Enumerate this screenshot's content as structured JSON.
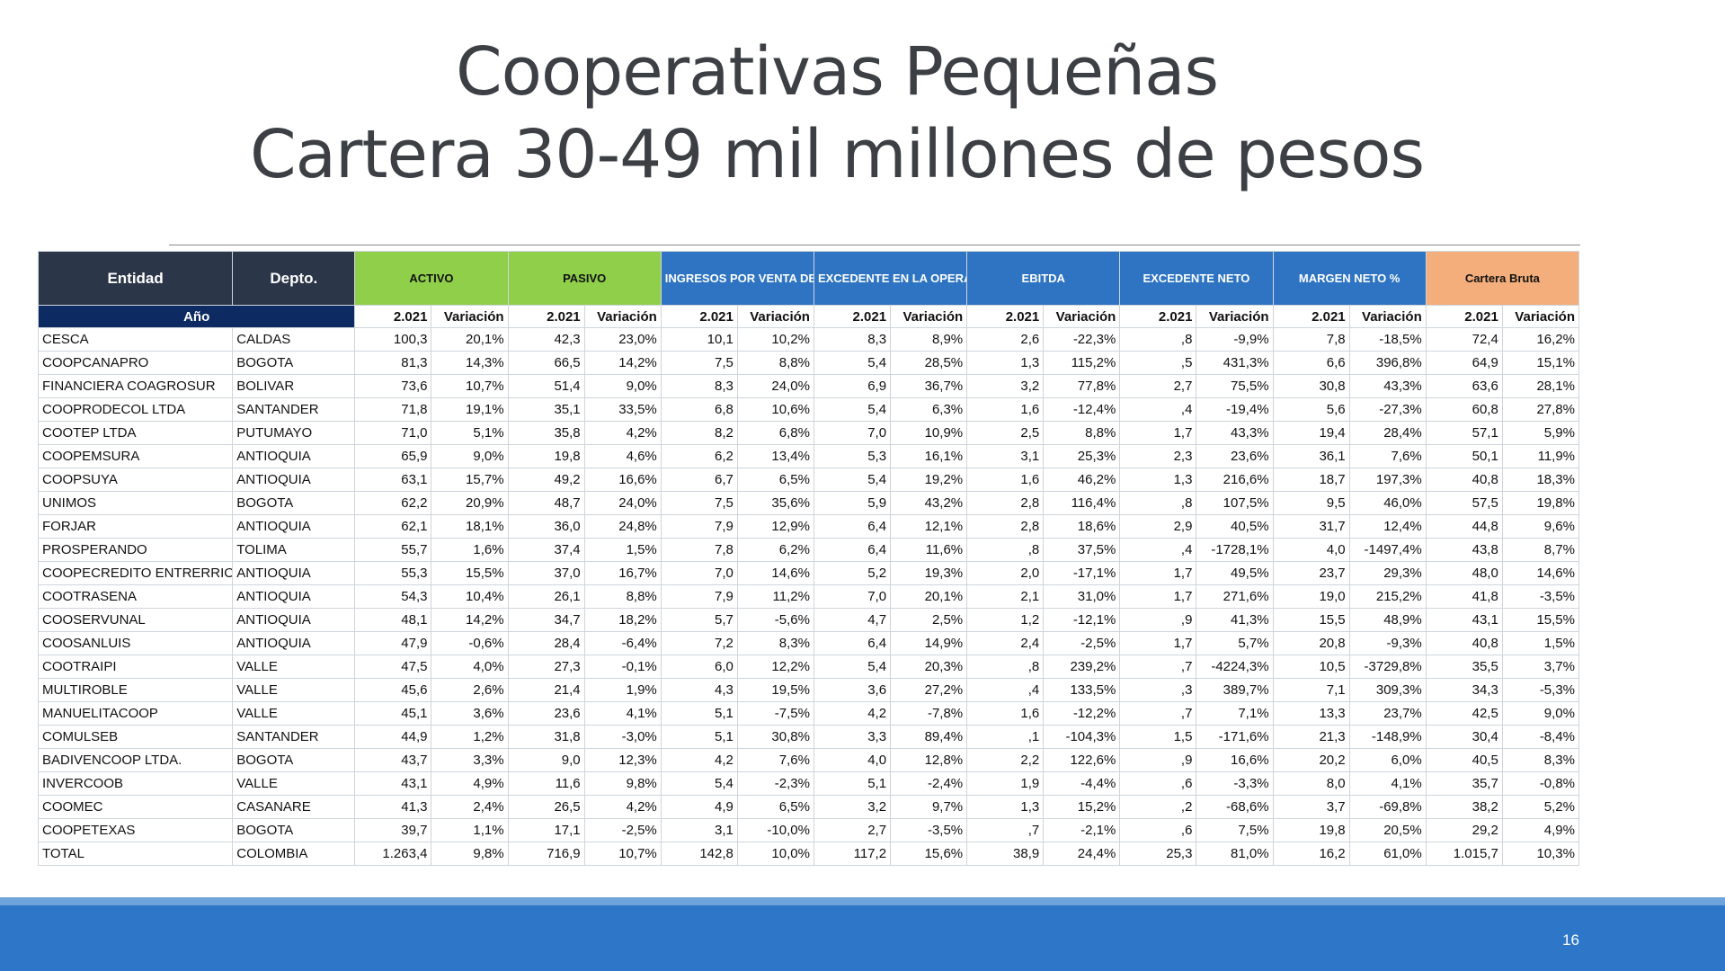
{
  "slide": {
    "title_line1": "Cooperativas Pequeñas",
    "title_line2": "Cartera 30-49 mil millones de pesos",
    "page_number": "16"
  },
  "table": {
    "headers": {
      "entidad": "Entidad",
      "depto": "Depto.",
      "anio": "Año",
      "groups": [
        {
          "label": "ACTIVO",
          "color": "#8fcf4a"
        },
        {
          "label": "PASIVO",
          "color": "#8fcf4a"
        },
        {
          "label": "INGRESOS POR VENTA DE BIENES Y SERVICIOS",
          "color": "#2e74c2"
        },
        {
          "label": "EXCEDENTE EN LA OPERACIÓN FINANCIERA",
          "color": "#2e74c2"
        },
        {
          "label": "EBITDA",
          "color": "#2e74c2"
        },
        {
          "label": "EXCEDENTE NETO",
          "color": "#2e74c2"
        },
        {
          "label": "MARGEN NETO %",
          "color": "#2e74c2"
        },
        {
          "label": "Cartera Bruta",
          "color": "#f4ae7b"
        }
      ],
      "sub_year": "2.021",
      "sub_var": "Variación"
    },
    "rows": [
      {
        "entidad": "CESCA",
        "depto": "CALDAS",
        "values": [
          "100,3",
          "20,1%",
          "42,3",
          "23,0%",
          "10,1",
          "10,2%",
          "8,3",
          "8,9%",
          "2,6",
          "-22,3%",
          ",8",
          "-9,9%",
          "7,8",
          "-18,5%",
          "72,4",
          "16,2%"
        ]
      },
      {
        "entidad": "COOPCANAPRO",
        "depto": "BOGOTA",
        "values": [
          "81,3",
          "14,3%",
          "66,5",
          "14,2%",
          "7,5",
          "8,8%",
          "5,4",
          "28,5%",
          "1,3",
          "115,2%",
          ",5",
          "431,3%",
          "6,6",
          "396,8%",
          "64,9",
          "15,1%"
        ]
      },
      {
        "entidad": "FINANCIERA COAGROSUR",
        "depto": "BOLIVAR",
        "values": [
          "73,6",
          "10,7%",
          "51,4",
          "9,0%",
          "8,3",
          "24,0%",
          "6,9",
          "36,7%",
          "3,2",
          "77,8%",
          "2,7",
          "75,5%",
          "30,8",
          "43,3%",
          "63,6",
          "28,1%"
        ]
      },
      {
        "entidad": "COOPRODECOL LTDA",
        "depto": "SANTANDER",
        "values": [
          "71,8",
          "19,1%",
          "35,1",
          "33,5%",
          "6,8",
          "10,6%",
          "5,4",
          "6,3%",
          "1,6",
          "-12,4%",
          ",4",
          "-19,4%",
          "5,6",
          "-27,3%",
          "60,8",
          "27,8%"
        ]
      },
      {
        "entidad": "COOTEP LTDA",
        "depto": "PUTUMAYO",
        "values": [
          "71,0",
          "5,1%",
          "35,8",
          "4,2%",
          "8,2",
          "6,8%",
          "7,0",
          "10,9%",
          "2,5",
          "8,8%",
          "1,7",
          "43,3%",
          "19,4",
          "28,4%",
          "57,1",
          "5,9%"
        ]
      },
      {
        "entidad": "COOPEMSURA",
        "depto": "ANTIOQUIA",
        "values": [
          "65,9",
          "9,0%",
          "19,8",
          "4,6%",
          "6,2",
          "13,4%",
          "5,3",
          "16,1%",
          "3,1",
          "25,3%",
          "2,3",
          "23,6%",
          "36,1",
          "7,6%",
          "50,1",
          "11,9%"
        ]
      },
      {
        "entidad": "COOPSUYA",
        "depto": "ANTIOQUIA",
        "values": [
          "63,1",
          "15,7%",
          "49,2",
          "16,6%",
          "6,7",
          "6,5%",
          "5,4",
          "19,2%",
          "1,6",
          "46,2%",
          "1,3",
          "216,6%",
          "18,7",
          "197,3%",
          "40,8",
          "18,3%"
        ]
      },
      {
        "entidad": "UNIMOS",
        "depto": "BOGOTA",
        "values": [
          "62,2",
          "20,9%",
          "48,7",
          "24,0%",
          "7,5",
          "35,6%",
          "5,9",
          "43,2%",
          "2,8",
          "116,4%",
          ",8",
          "107,5%",
          "9,5",
          "46,0%",
          "57,5",
          "19,8%"
        ]
      },
      {
        "entidad": "FORJAR",
        "depto": "ANTIOQUIA",
        "values": [
          "62,1",
          "18,1%",
          "36,0",
          "24,8%",
          "7,9",
          "12,9%",
          "6,4",
          "12,1%",
          "2,8",
          "18,6%",
          "2,9",
          "40,5%",
          "31,7",
          "12,4%",
          "44,8",
          "9,6%"
        ]
      },
      {
        "entidad": "PROSPERANDO",
        "depto": "TOLIMA",
        "values": [
          "55,7",
          "1,6%",
          "37,4",
          "1,5%",
          "7,8",
          "6,2%",
          "6,4",
          "11,6%",
          ",8",
          "37,5%",
          ",4",
          "-1728,1%",
          "4,0",
          "-1497,4%",
          "43,8",
          "8,7%"
        ]
      },
      {
        "entidad": "COOPECREDITO ENTRERRIOS",
        "depto": "ANTIOQUIA",
        "values": [
          "55,3",
          "15,5%",
          "37,0",
          "16,7%",
          "7,0",
          "14,6%",
          "5,2",
          "19,3%",
          "2,0",
          "-17,1%",
          "1,7",
          "49,5%",
          "23,7",
          "29,3%",
          "48,0",
          "14,6%"
        ]
      },
      {
        "entidad": "COOTRASENA",
        "depto": "ANTIOQUIA",
        "values": [
          "54,3",
          "10,4%",
          "26,1",
          "8,8%",
          "7,9",
          "11,2%",
          "7,0",
          "20,1%",
          "2,1",
          "31,0%",
          "1,7",
          "271,6%",
          "19,0",
          "215,2%",
          "41,8",
          "-3,5%"
        ]
      },
      {
        "entidad": "COOSERVUNAL",
        "depto": "ANTIOQUIA",
        "values": [
          "48,1",
          "14,2%",
          "34,7",
          "18,2%",
          "5,7",
          "-5,6%",
          "4,7",
          "2,5%",
          "1,2",
          "-12,1%",
          ",9",
          "41,3%",
          "15,5",
          "48,9%",
          "43,1",
          "15,5%"
        ]
      },
      {
        "entidad": "COOSANLUIS",
        "depto": "ANTIOQUIA",
        "values": [
          "47,9",
          "-0,6%",
          "28,4",
          "-6,4%",
          "7,2",
          "8,3%",
          "6,4",
          "14,9%",
          "2,4",
          "-2,5%",
          "1,7",
          "5,7%",
          "20,8",
          "-9,3%",
          "40,8",
          "1,5%"
        ]
      },
      {
        "entidad": "COOTRAIPI",
        "depto": "VALLE",
        "values": [
          "47,5",
          "4,0%",
          "27,3",
          "-0,1%",
          "6,0",
          "12,2%",
          "5,4",
          "20,3%",
          ",8",
          "239,2%",
          ",7",
          "-4224,3%",
          "10,5",
          "-3729,8%",
          "35,5",
          "3,7%"
        ]
      },
      {
        "entidad": "MULTIROBLE",
        "depto": "VALLE",
        "values": [
          "45,6",
          "2,6%",
          "21,4",
          "1,9%",
          "4,3",
          "19,5%",
          "3,6",
          "27,2%",
          ",4",
          "133,5%",
          ",3",
          "389,7%",
          "7,1",
          "309,3%",
          "34,3",
          "-5,3%"
        ]
      },
      {
        "entidad": "MANUELITACOOP",
        "depto": "VALLE",
        "values": [
          "45,1",
          "3,6%",
          "23,6",
          "4,1%",
          "5,1",
          "-7,5%",
          "4,2",
          "-7,8%",
          "1,6",
          "-12,2%",
          ",7",
          "7,1%",
          "13,3",
          "23,7%",
          "42,5",
          "9,0%"
        ]
      },
      {
        "entidad": "COMULSEB",
        "depto": "SANTANDER",
        "values": [
          "44,9",
          "1,2%",
          "31,8",
          "-3,0%",
          "5,1",
          "30,8%",
          "3,3",
          "89,4%",
          ",1",
          "-104,3%",
          "1,5",
          "-171,6%",
          "21,3",
          "-148,9%",
          "30,4",
          "-8,4%"
        ]
      },
      {
        "entidad": "BADIVENCOOP LTDA.",
        "depto": "BOGOTA",
        "values": [
          "43,7",
          "3,3%",
          "9,0",
          "12,3%",
          "4,2",
          "7,6%",
          "4,0",
          "12,8%",
          "2,2",
          "122,6%",
          ",9",
          "16,6%",
          "20,2",
          "6,0%",
          "40,5",
          "8,3%"
        ]
      },
      {
        "entidad": "INVERCOOB",
        "depto": "VALLE",
        "values": [
          "43,1",
          "4,9%",
          "11,6",
          "9,8%",
          "5,4",
          "-2,3%",
          "5,1",
          "-2,4%",
          "1,9",
          "-4,4%",
          ",6",
          "-3,3%",
          "8,0",
          "4,1%",
          "35,7",
          "-0,8%"
        ]
      },
      {
        "entidad": "COOMEC",
        "depto": "CASANARE",
        "values": [
          "41,3",
          "2,4%",
          "26,5",
          "4,2%",
          "4,9",
          "6,5%",
          "3,2",
          "9,7%",
          "1,3",
          "15,2%",
          ",2",
          "-68,6%",
          "3,7",
          "-69,8%",
          "38,2",
          "5,2%"
        ]
      },
      {
        "entidad": "COOPETEXAS",
        "depto": "BOGOTA",
        "values": [
          "39,7",
          "1,1%",
          "17,1",
          "-2,5%",
          "3,1",
          "-10,0%",
          "2,7",
          "-3,5%",
          ",7",
          "-2,1%",
          ",6",
          "7,5%",
          "19,8",
          "20,5%",
          "29,2",
          "4,9%"
        ]
      },
      {
        "entidad": "TOTAL",
        "depto": "COLOMBIA",
        "values": [
          "1.263,4",
          "9,8%",
          "716,9",
          "10,7%",
          "142,8",
          "10,0%",
          "117,2",
          "15,6%",
          "38,9",
          "24,4%",
          "25,3",
          "81,0%",
          "16,2",
          "61,0%",
          "1.015,7",
          "10,3%"
        ]
      }
    ]
  }
}
